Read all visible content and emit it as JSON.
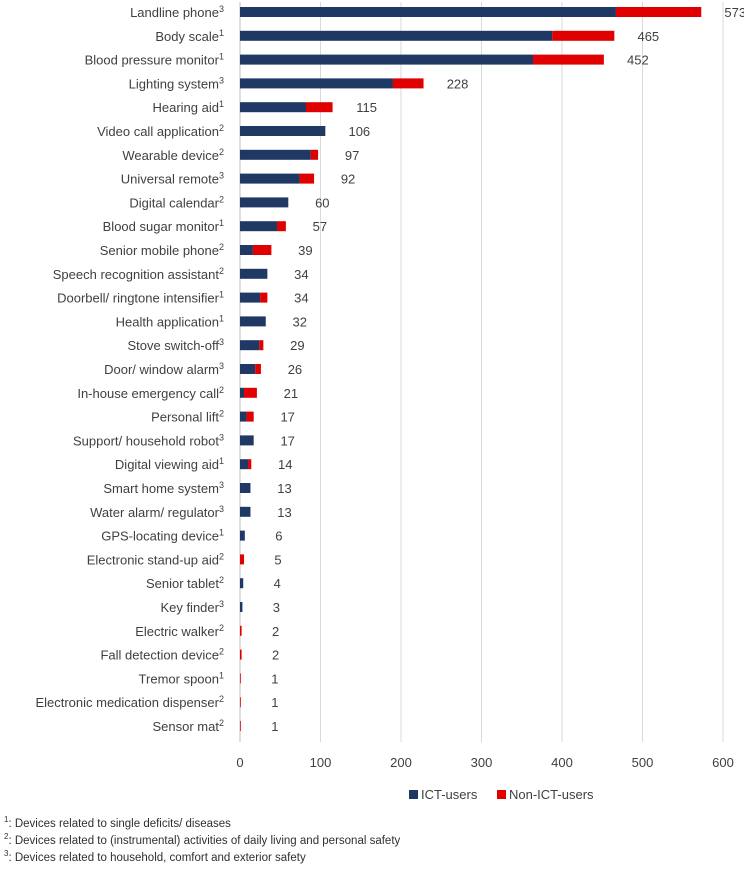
{
  "chart_data": {
    "type": "bar",
    "orientation": "horizontal",
    "stacked": true,
    "title": "",
    "xlabel": "",
    "ylabel": "",
    "xlim": [
      0,
      620
    ],
    "x_ticks": [
      0,
      100,
      200,
      300,
      400,
      500,
      600
    ],
    "grid": "vertical",
    "legend_position": "bottom",
    "categories": [
      {
        "label": "Landline phone",
        "sup": "3"
      },
      {
        "label": "Body scale",
        "sup": "1"
      },
      {
        "label": "Blood pressure monitor",
        "sup": "1"
      },
      {
        "label": "Lighting system",
        "sup": "3"
      },
      {
        "label": "Hearing aid",
        "sup": "1"
      },
      {
        "label": "Video call application",
        "sup": "2"
      },
      {
        "label": "Wearable device",
        "sup": "2"
      },
      {
        "label": "Universal remote",
        "sup": "3"
      },
      {
        "label": "Digital calendar",
        "sup": "2"
      },
      {
        "label": "Blood sugar monitor",
        "sup": "1"
      },
      {
        "label": "Senior mobile phone",
        "sup": "2"
      },
      {
        "label": "Speech recognition assistant",
        "sup": "2"
      },
      {
        "label": "Doorbell/ ringtone intensifier",
        "sup": "1"
      },
      {
        "label": "Health application",
        "sup": "1"
      },
      {
        "label": "Stove switch-off",
        "sup": "3"
      },
      {
        "label": "Door/ window alarm",
        "sup": "3"
      },
      {
        "label": "In-house emergency call",
        "sup": "2"
      },
      {
        "label": "Personal lift",
        "sup": "2"
      },
      {
        "label": "Support/ household robot",
        "sup": "3"
      },
      {
        "label": "Digital viewing aid",
        "sup": "1"
      },
      {
        "label": "Smart home system",
        "sup": "3"
      },
      {
        "label": "Water alarm/ regulator",
        "sup": "3"
      },
      {
        "label": "GPS-locating device",
        "sup": "1"
      },
      {
        "label": "Electronic stand-up aid",
        "sup": "2"
      },
      {
        "label": "Senior tablet",
        "sup": "2"
      },
      {
        "label": "Key finder",
        "sup": "3"
      },
      {
        "label": "Electric walker",
        "sup": "2"
      },
      {
        "label": "Fall detection device",
        "sup": "2"
      },
      {
        "label": "Tremor spoon",
        "sup": "1"
      },
      {
        "label": "Electronic medication dispenser",
        "sup": "2"
      },
      {
        "label": "Sensor mat",
        "sup": "2"
      }
    ],
    "series": [
      {
        "name": "ICT-users",
        "color": "#1f3864",
        "values": [
          467,
          388,
          364,
          190,
          82,
          106,
          88,
          74,
          60,
          46,
          16,
          34,
          25,
          32,
          24,
          19,
          5,
          8,
          17,
          10,
          13,
          13,
          6,
          0,
          4,
          3,
          0,
          0,
          0,
          0,
          0
        ]
      },
      {
        "name": "Non-ICT-users",
        "color": "#e00000",
        "values": [
          106,
          77,
          88,
          38,
          33,
          0,
          9,
          18,
          0,
          11,
          23,
          0,
          9,
          0,
          5,
          7,
          16,
          9,
          0,
          4,
          0,
          0,
          0,
          5,
          0,
          0,
          2,
          2,
          1,
          1,
          1
        ]
      }
    ],
    "totals": [
      573,
      465,
      452,
      228,
      115,
      106,
      97,
      92,
      60,
      57,
      39,
      34,
      34,
      32,
      29,
      26,
      21,
      17,
      17,
      14,
      13,
      13,
      6,
      5,
      4,
      3,
      2,
      2,
      1,
      1,
      1
    ]
  },
  "footnotes": [
    {
      "sup": "1",
      "text": ": Devices related to single deficits/ diseases"
    },
    {
      "sup": "2",
      "text": ": Devices related to (instrumental) activities of daily living and personal safety"
    },
    {
      "sup": "3",
      "text": ": Devices related to household, comfort and exterior safety"
    }
  ]
}
